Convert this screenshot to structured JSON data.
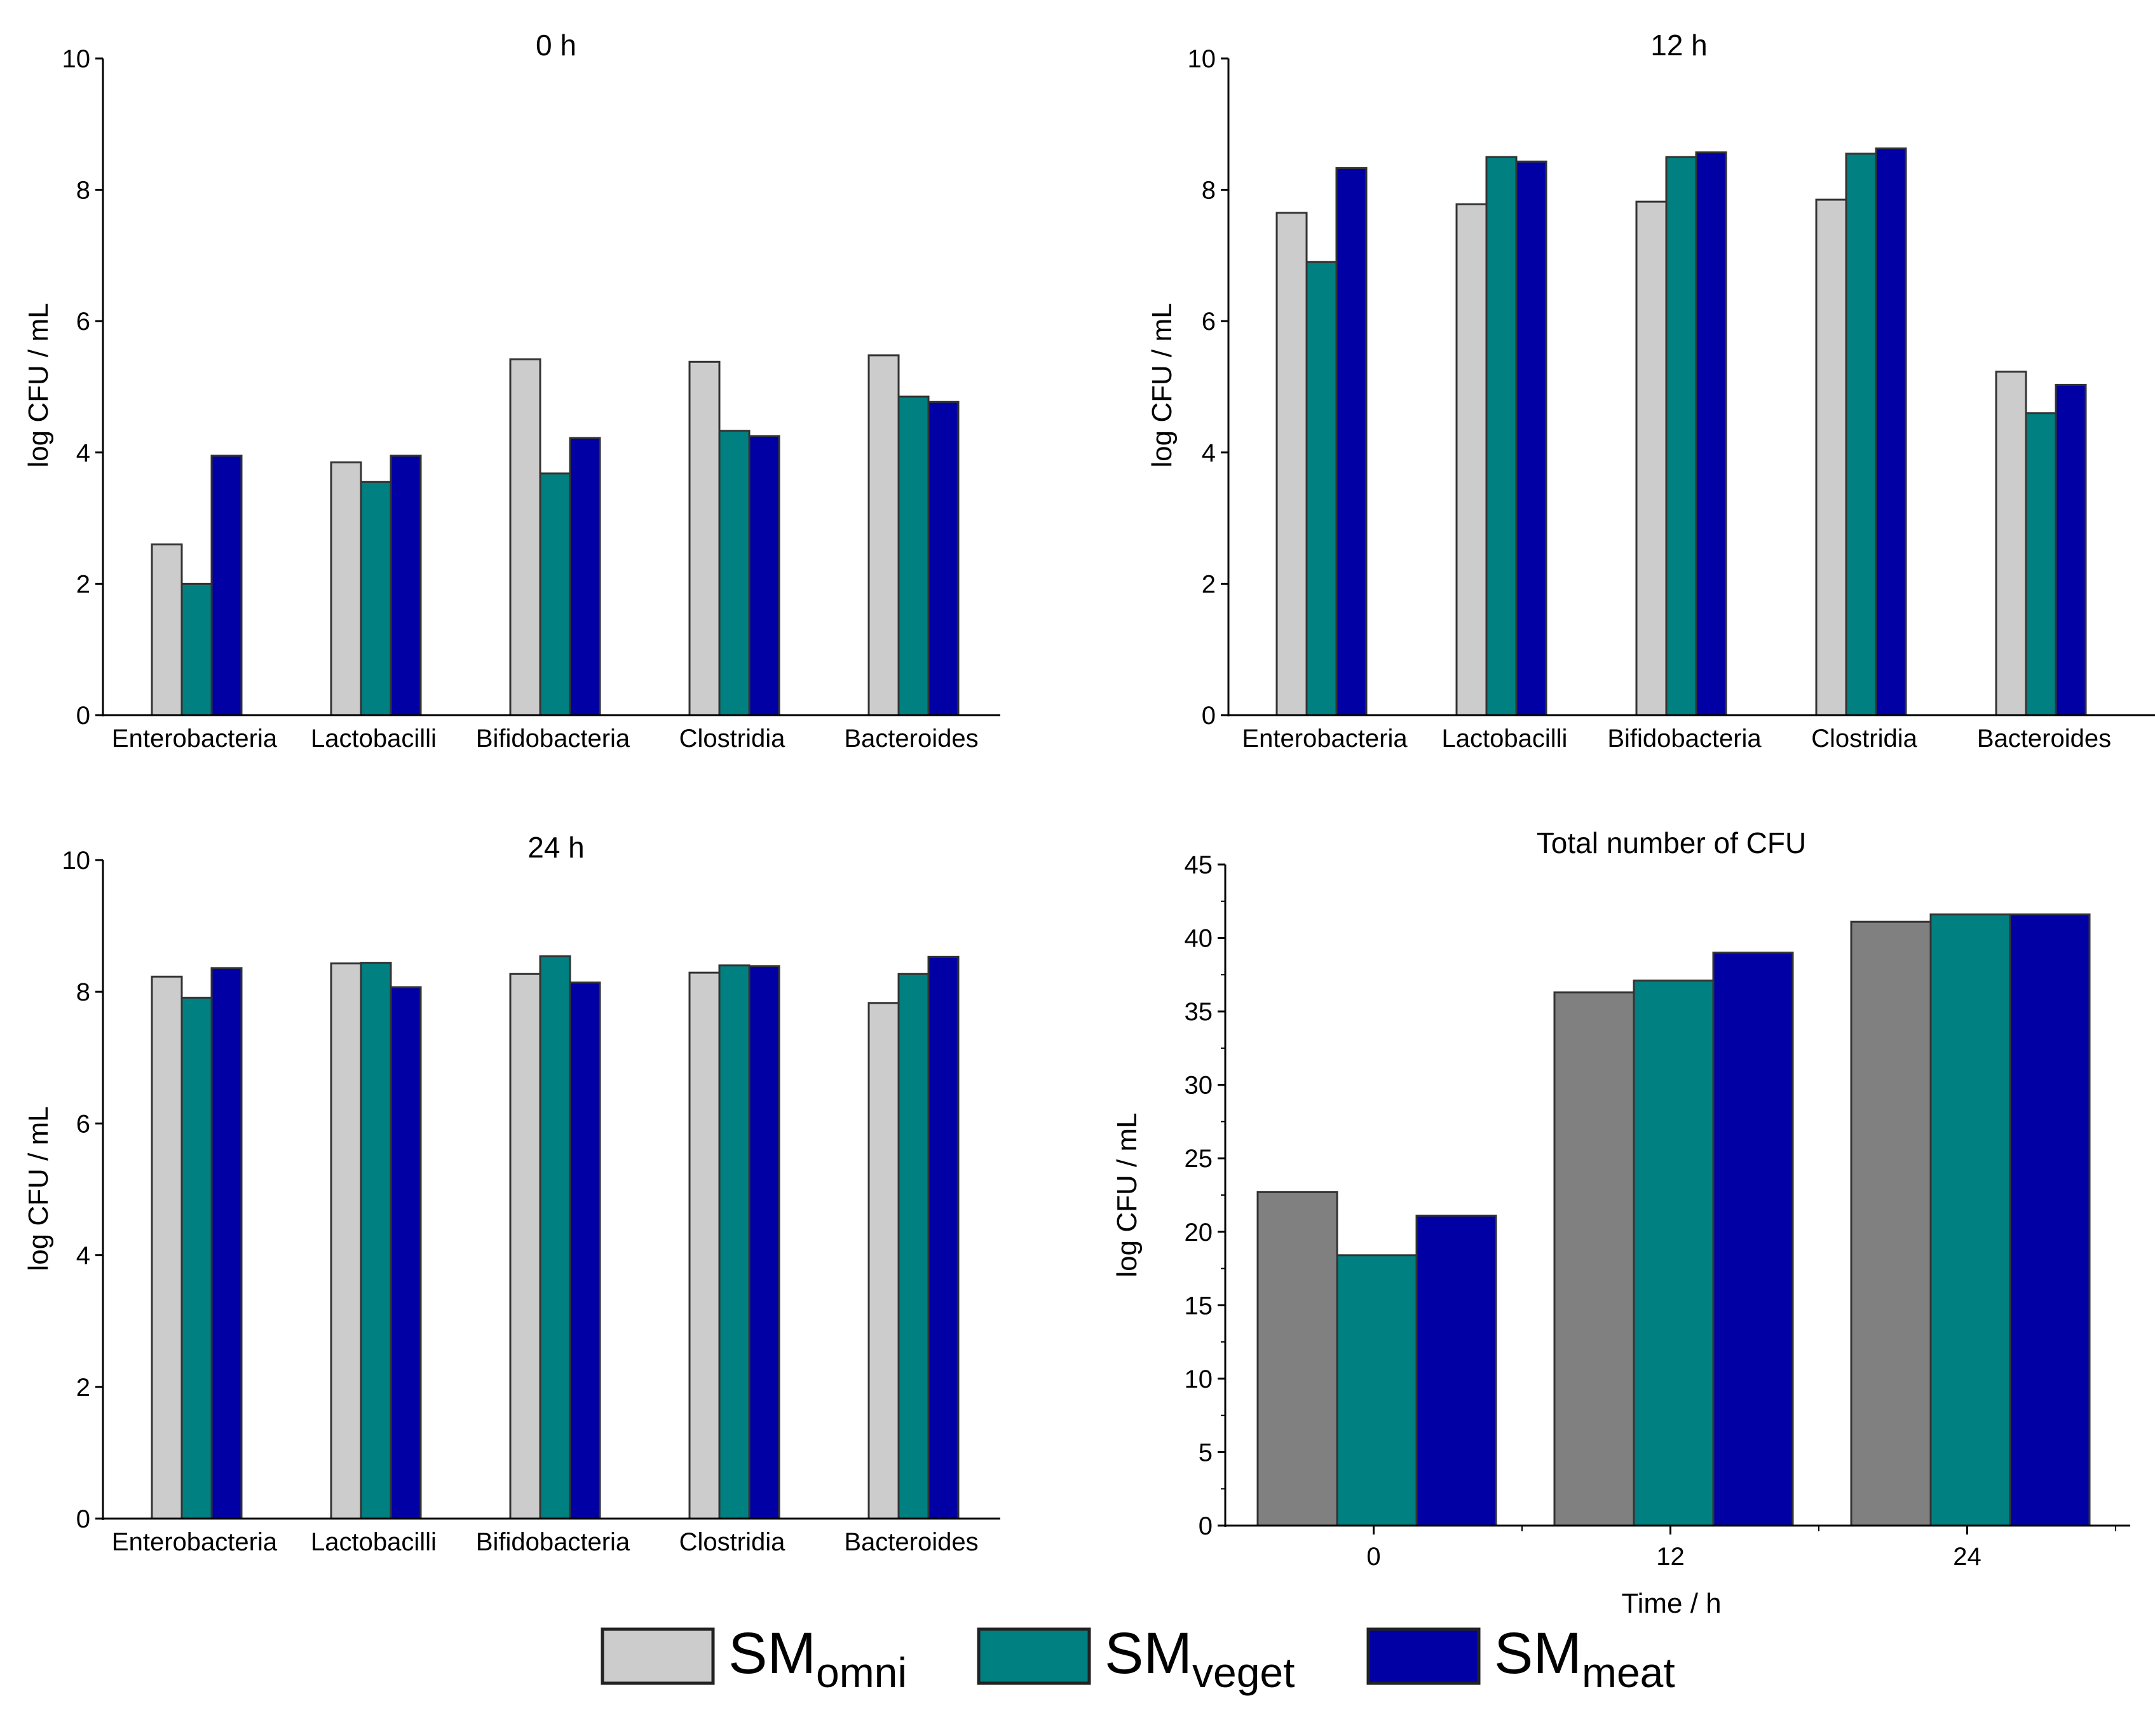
{
  "colors": {
    "omni_light": "#cccccc",
    "omni_dark": "#808080",
    "veget": "#008080",
    "meat": "#0000a5"
  },
  "legend": {
    "items": [
      {
        "prefix": "SM",
        "sub": "omni"
      },
      {
        "prefix": "SM",
        "sub": "veget"
      },
      {
        "prefix": "SM",
        "sub": "meat"
      }
    ]
  },
  "chart_data": [
    {
      "type": "bar",
      "title": "0 h",
      "ylabel": "log CFU / mL",
      "xlabel": "",
      "ylim": [
        0,
        10
      ],
      "yticks": [
        0,
        2,
        4,
        6,
        8,
        10
      ],
      "categories": [
        "Enterobacteria",
        "Lactobacilli",
        "Bifidobacteria",
        "Clostridia",
        "Bacteroides"
      ],
      "series": [
        {
          "values": [
            2.6,
            3.85,
            5.42,
            5.38,
            5.48
          ]
        },
        {
          "values": [
            2.0,
            3.55,
            3.68,
            4.33,
            4.85
          ]
        },
        {
          "values": [
            3.95,
            3.95,
            4.22,
            4.25,
            4.77
          ]
        }
      ]
    },
    {
      "type": "bar",
      "title": "12 h",
      "ylabel": "log CFU / mL",
      "xlabel": "",
      "ylim": [
        0,
        10
      ],
      "yticks": [
        0,
        2,
        4,
        6,
        8,
        10
      ],
      "categories": [
        "Enterobacteria",
        "Lactobacilli",
        "Bifidobacteria",
        "Clostridia",
        "Bacteroides"
      ],
      "series": [
        {
          "values": [
            7.65,
            7.78,
            7.82,
            7.85,
            5.23
          ]
        },
        {
          "values": [
            6.9,
            8.5,
            8.5,
            8.55,
            4.6
          ]
        },
        {
          "values": [
            8.33,
            8.43,
            8.57,
            8.63,
            5.03
          ]
        }
      ]
    },
    {
      "type": "bar",
      "title": "24 h",
      "ylabel": "log CFU / mL",
      "xlabel": "",
      "ylim": [
        0,
        10
      ],
      "yticks": [
        0,
        2,
        4,
        6,
        8,
        10
      ],
      "categories": [
        "Enterobacteria",
        "Lactobacilli",
        "Bifidobacteria",
        "Clostridia",
        "Bacteroides"
      ],
      "series": [
        {
          "values": [
            8.23,
            8.43,
            8.27,
            8.29,
            7.83
          ]
        },
        {
          "values": [
            7.91,
            8.44,
            8.54,
            8.4,
            8.27
          ]
        },
        {
          "values": [
            8.36,
            8.07,
            8.14,
            8.39,
            8.53
          ]
        }
      ]
    },
    {
      "type": "bar",
      "title": "Total number of CFU",
      "ylabel": "log CFU / mL",
      "xlabel": "Time / h",
      "ylim": [
        0,
        45
      ],
      "yticks": [
        0,
        5,
        10,
        15,
        20,
        25,
        30,
        35,
        40,
        45
      ],
      "categories": [
        "0",
        "12",
        "24"
      ],
      "series": [
        {
          "values": [
            22.7,
            36.3,
            41.1
          ]
        },
        {
          "values": [
            18.4,
            37.1,
            41.6
          ]
        },
        {
          "values": [
            21.1,
            39.0,
            41.6
          ]
        }
      ]
    }
  ]
}
